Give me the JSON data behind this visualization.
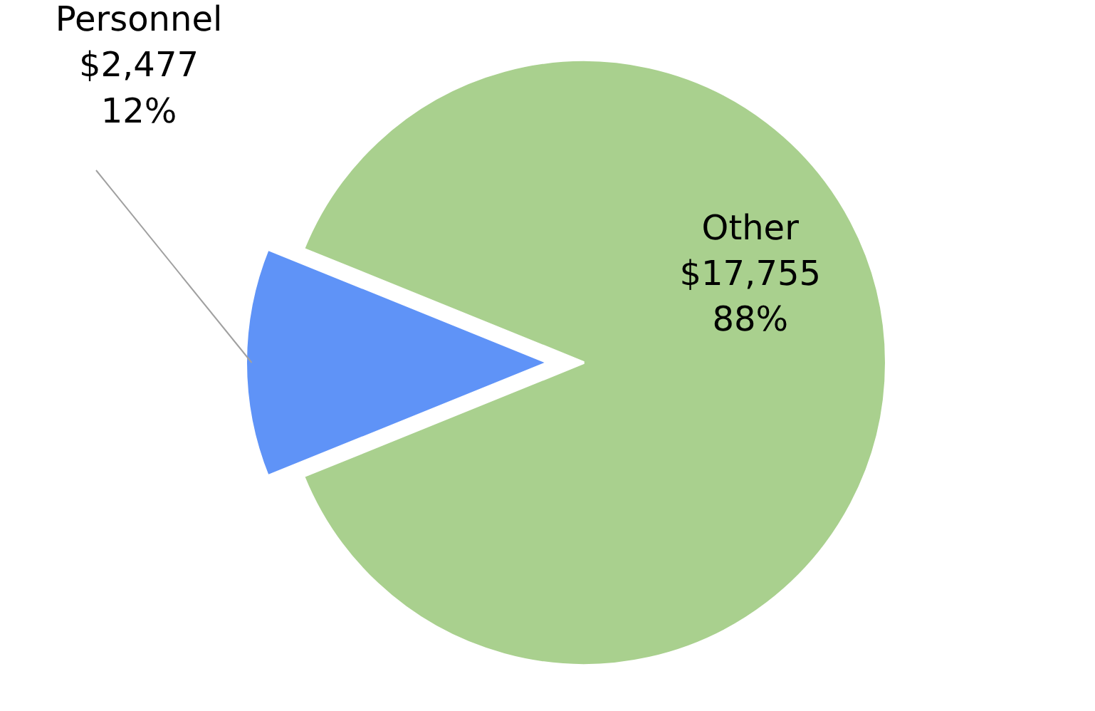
{
  "chart_data": {
    "type": "pie",
    "categories": [
      "Personnel",
      "Other"
    ],
    "values": [
      2477,
      17755
    ],
    "colors": [
      "#5f93f7",
      "#a9d08e"
    ],
    "value_labels": [
      "$2,477\n12%",
      "$17,755\n88%"
    ]
  }
}
